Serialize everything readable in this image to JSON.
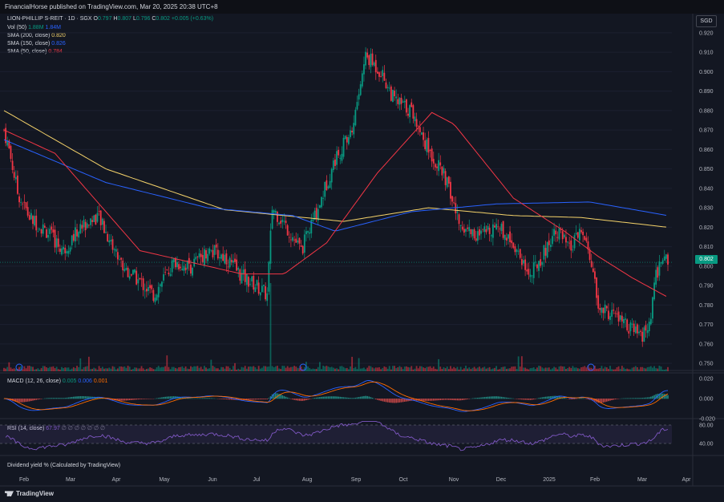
{
  "header": {
    "publisher": "FinancialHorse published on TradingView.com, Mar 20, 2025 20:38 UTC+8"
  },
  "legend": {
    "symbol": "LION-PHILLIP S-REIT · 1D · SGX",
    "ohlc": [
      {
        "k": "O",
        "v": "0.797"
      },
      {
        "k": "H",
        "v": "0.807"
      },
      {
        "k": "L",
        "v": "0.796"
      },
      {
        "k": "C",
        "v": "0.802"
      }
    ],
    "change": "+0.005 (+0.63%)",
    "vol_label": "Vol (50)",
    "vol_value": "1.88M",
    "vol_ma": "1.84M",
    "sma200_label": "SMA (200, close)",
    "sma200_value": "0.820",
    "sma150_label": "SMA (150, close)",
    "sma150_value": "0.826",
    "sma50_label": "SMA (50, close)",
    "sma50_value": "0.784",
    "macd_label": "MACD (12, 26, close)",
    "macd_value": "0.005",
    "macd_signal": "0.006",
    "macd_hist": "0.001",
    "rsi_label": "RSI (14, close)",
    "rsi_value": "67.97",
    "rsi_extra": "∅ ∅ ∅ ∅ ∅ ∅ ∅",
    "div_label": "Dividend yield % (Calculated by TradingView)"
  },
  "currency": "SGD",
  "last_price": "0.802",
  "brand": "TradingView",
  "colors": {
    "up": "#089981",
    "down": "#f23645",
    "sma200": "#f5d36a",
    "sma150": "#2962ff",
    "sma50": "#f23645",
    "rsi": "#7e57c2",
    "macd": "#2962ff",
    "signal": "#ff6d00"
  },
  "chart_data": {
    "type": "candlestick",
    "y_ticks": [
      "0.920",
      "0.910",
      "0.900",
      "0.890",
      "0.880",
      "0.870",
      "0.860",
      "0.850",
      "0.840",
      "0.830",
      "0.820",
      "0.810",
      "0.800",
      "0.790",
      "0.780",
      "0.770",
      "0.760",
      "0.750"
    ],
    "y_range": [
      0.748,
      0.922
    ],
    "x_ticks": [
      "Feb",
      "Mar",
      "Apr",
      "May",
      "Jun",
      "Jul",
      "Aug",
      "Sep",
      "Oct",
      "Nov",
      "Dec",
      "2025",
      "Feb",
      "Mar",
      "Apr"
    ],
    "close_anchors": [
      {
        "t": 0,
        "v": 0.87
      },
      {
        "t": 3,
        "v": 0.86
      },
      {
        "t": 8,
        "v": 0.838
      },
      {
        "t": 15,
        "v": 0.825
      },
      {
        "t": 25,
        "v": 0.818
      },
      {
        "t": 35,
        "v": 0.808
      },
      {
        "t": 45,
        "v": 0.82
      },
      {
        "t": 55,
        "v": 0.826
      },
      {
        "t": 70,
        "v": 0.8
      },
      {
        "t": 80,
        "v": 0.792
      },
      {
        "t": 88,
        "v": 0.785
      },
      {
        "t": 100,
        "v": 0.802
      },
      {
        "t": 110,
        "v": 0.8
      },
      {
        "t": 120,
        "v": 0.808
      },
      {
        "t": 130,
        "v": 0.805
      },
      {
        "t": 140,
        "v": 0.795
      },
      {
        "t": 150,
        "v": 0.789
      },
      {
        "t": 155,
        "v": 0.785
      },
      {
        "t": 158,
        "v": 0.83
      },
      {
        "t": 165,
        "v": 0.822
      },
      {
        "t": 175,
        "v": 0.808
      },
      {
        "t": 185,
        "v": 0.83
      },
      {
        "t": 195,
        "v": 0.855
      },
      {
        "t": 205,
        "v": 0.87
      },
      {
        "t": 213,
        "v": 0.908
      },
      {
        "t": 222,
        "v": 0.9
      },
      {
        "t": 230,
        "v": 0.885
      },
      {
        "t": 240,
        "v": 0.88
      },
      {
        "t": 250,
        "v": 0.86
      },
      {
        "t": 260,
        "v": 0.845
      },
      {
        "t": 268,
        "v": 0.822
      },
      {
        "t": 280,
        "v": 0.815
      },
      {
        "t": 290,
        "v": 0.822
      },
      {
        "t": 300,
        "v": 0.812
      },
      {
        "t": 310,
        "v": 0.795
      },
      {
        "t": 320,
        "v": 0.81
      },
      {
        "t": 325,
        "v": 0.82
      },
      {
        "t": 333,
        "v": 0.808
      },
      {
        "t": 340,
        "v": 0.818
      },
      {
        "t": 346,
        "v": 0.802
      },
      {
        "t": 350,
        "v": 0.778
      },
      {
        "t": 360,
        "v": 0.775
      },
      {
        "t": 368,
        "v": 0.768
      },
      {
        "t": 375,
        "v": 0.764
      },
      {
        "t": 380,
        "v": 0.768
      },
      {
        "t": 384,
        "v": 0.795
      },
      {
        "t": 388,
        "v": 0.805
      },
      {
        "t": 391,
        "v": 0.802
      }
    ],
    "sma200_anchors": [
      {
        "t": 0,
        "v": 0.88
      },
      {
        "t": 60,
        "v": 0.85
      },
      {
        "t": 130,
        "v": 0.829
      },
      {
        "t": 200,
        "v": 0.823
      },
      {
        "t": 250,
        "v": 0.83
      },
      {
        "t": 300,
        "v": 0.826
      },
      {
        "t": 340,
        "v": 0.825
      },
      {
        "t": 391,
        "v": 0.82
      }
    ],
    "sma150_anchors": [
      {
        "t": 0,
        "v": 0.865
      },
      {
        "t": 60,
        "v": 0.843
      },
      {
        "t": 120,
        "v": 0.83
      },
      {
        "t": 170,
        "v": 0.826
      },
      {
        "t": 195,
        "v": 0.818
      },
      {
        "t": 240,
        "v": 0.828
      },
      {
        "t": 290,
        "v": 0.832
      },
      {
        "t": 345,
        "v": 0.833
      },
      {
        "t": 391,
        "v": 0.826
      }
    ],
    "sma50_anchors": [
      {
        "t": 0,
        "v": 0.87
      },
      {
        "t": 30,
        "v": 0.858
      },
      {
        "t": 80,
        "v": 0.808
      },
      {
        "t": 140,
        "v": 0.796
      },
      {
        "t": 165,
        "v": 0.796
      },
      {
        "t": 190,
        "v": 0.812
      },
      {
        "t": 220,
        "v": 0.848
      },
      {
        "t": 252,
        "v": 0.879
      },
      {
        "t": 265,
        "v": 0.873
      },
      {
        "t": 300,
        "v": 0.835
      },
      {
        "t": 330,
        "v": 0.818
      },
      {
        "t": 350,
        "v": 0.805
      },
      {
        "t": 370,
        "v": 0.794
      },
      {
        "t": 391,
        "v": 0.784
      }
    ],
    "macd_ticks": [
      "0.020",
      "0.000",
      "-0.020"
    ],
    "rsi_ticks": [
      "80.00",
      "40.00"
    ]
  }
}
